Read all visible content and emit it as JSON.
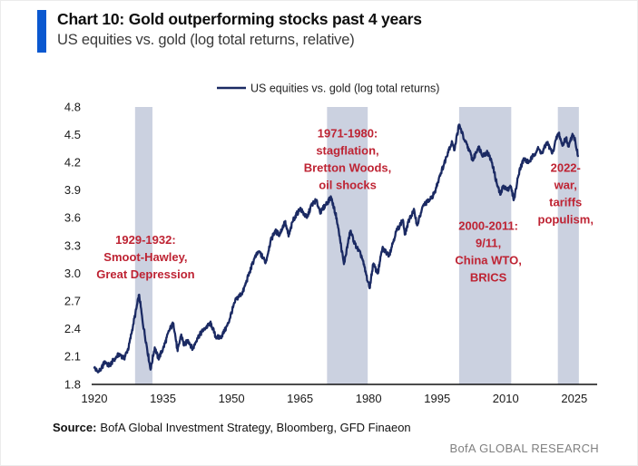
{
  "header": {
    "title": "Chart 10: Gold outperforming stocks past 4 years",
    "subtitle": "US equities vs. gold (log total returns, relative)"
  },
  "legend": {
    "label": "US equities vs. gold (log total returns)"
  },
  "colors": {
    "accent": "#0a58d0",
    "line": "#1b2a63",
    "band": "#cbd1e0",
    "annotation": "#be2333",
    "axis": "#111111",
    "tick_label": "#1a1a1a",
    "brand": "#808080"
  },
  "chart_data": {
    "type": "line",
    "title": "Chart 10: Gold outperforming stocks past 4 years",
    "subtitle": "US equities vs. gold (log total returns, relative)",
    "xlabel": "",
    "ylabel": "",
    "xlim": [
      1920,
      2030
    ],
    "ylim": [
      1.8,
      4.8
    ],
    "xticks": [
      1920,
      1935,
      1950,
      1965,
      1980,
      1995,
      2010,
      2025
    ],
    "yticks": [
      1.8,
      2.1,
      2.4,
      2.7,
      3.0,
      3.3,
      3.6,
      3.9,
      4.2,
      4.5,
      4.8
    ],
    "grid": false,
    "legend_position": "top-center",
    "series": [
      {
        "name": "US equities vs. gold (log total returns)",
        "points": [
          [
            1920,
            1.98
          ],
          [
            1920.8,
            1.93
          ],
          [
            1921.5,
            1.97
          ],
          [
            1922.3,
            2.05
          ],
          [
            1923.2,
            2.0
          ],
          [
            1924.5,
            2.08
          ],
          [
            1925.5,
            2.13
          ],
          [
            1926.5,
            2.08
          ],
          [
            1927.5,
            2.2
          ],
          [
            1928.5,
            2.45
          ],
          [
            1929.8,
            2.77
          ],
          [
            1930.5,
            2.5
          ],
          [
            1931.5,
            2.2
          ],
          [
            1932.3,
            1.96
          ],
          [
            1933.2,
            2.2
          ],
          [
            1934,
            2.08
          ],
          [
            1935,
            2.18
          ],
          [
            1936.5,
            2.4
          ],
          [
            1937.3,
            2.46
          ],
          [
            1938.2,
            2.16
          ],
          [
            1939,
            2.34
          ],
          [
            1939.6,
            2.22
          ],
          [
            1940.5,
            2.28
          ],
          [
            1941.5,
            2.18
          ],
          [
            1942.5,
            2.3
          ],
          [
            1944,
            2.4
          ],
          [
            1945.5,
            2.46
          ],
          [
            1946.5,
            2.32
          ],
          [
            1947.5,
            2.3
          ],
          [
            1948.5,
            2.38
          ],
          [
            1949.3,
            2.46
          ],
          [
            1950,
            2.58
          ],
          [
            1951,
            2.72
          ],
          [
            1952.5,
            2.8
          ],
          [
            1954,
            3.02
          ],
          [
            1955,
            3.16
          ],
          [
            1956,
            3.24
          ],
          [
            1957.5,
            3.12
          ],
          [
            1958.5,
            3.34
          ],
          [
            1959.5,
            3.46
          ],
          [
            1960.5,
            3.42
          ],
          [
            1961.7,
            3.56
          ],
          [
            1962.5,
            3.4
          ],
          [
            1963.5,
            3.58
          ],
          [
            1965,
            3.7
          ],
          [
            1966.5,
            3.6
          ],
          [
            1967.5,
            3.74
          ],
          [
            1968.5,
            3.79
          ],
          [
            1969.5,
            3.66
          ],
          [
            1970.5,
            3.74
          ],
          [
            1971.8,
            3.82
          ],
          [
            1973,
            3.6
          ],
          [
            1974.6,
            3.1
          ],
          [
            1976,
            3.46
          ],
          [
            1977,
            3.32
          ],
          [
            1978.5,
            3.18
          ],
          [
            1979.5,
            2.98
          ],
          [
            1980.2,
            2.84
          ],
          [
            1981,
            3.1
          ],
          [
            1982,
            3.0
          ],
          [
            1983,
            3.27
          ],
          [
            1984.5,
            3.2
          ],
          [
            1986,
            3.45
          ],
          [
            1987.5,
            3.58
          ],
          [
            1987.9,
            3.42
          ],
          [
            1989,
            3.6
          ],
          [
            1990,
            3.68
          ],
          [
            1990.6,
            3.52
          ],
          [
            1992,
            3.74
          ],
          [
            1993.5,
            3.8
          ],
          [
            1994.5,
            3.88
          ],
          [
            1995.5,
            4.05
          ],
          [
            1996.5,
            4.18
          ],
          [
            1997.5,
            4.34
          ],
          [
            1998.3,
            4.42
          ],
          [
            1998.7,
            4.33
          ],
          [
            1999.8,
            4.61
          ],
          [
            2001,
            4.44
          ],
          [
            2002,
            4.33
          ],
          [
            2002.8,
            4.22
          ],
          [
            2004,
            4.37
          ],
          [
            2005,
            4.28
          ],
          [
            2006,
            4.31
          ],
          [
            2007,
            4.2
          ],
          [
            2008,
            3.98
          ],
          [
            2008.8,
            3.85
          ],
          [
            2009.5,
            3.95
          ],
          [
            2010.3,
            3.9
          ],
          [
            2011,
            3.95
          ],
          [
            2011.8,
            3.8
          ],
          [
            2013,
            4.12
          ],
          [
            2014,
            4.24
          ],
          [
            2015,
            4.2
          ],
          [
            2016,
            4.27
          ],
          [
            2017,
            4.35
          ],
          [
            2018,
            4.3
          ],
          [
            2019,
            4.42
          ],
          [
            2020.2,
            4.3
          ],
          [
            2021,
            4.45
          ],
          [
            2021.6,
            4.52
          ],
          [
            2022.4,
            4.38
          ],
          [
            2023.2,
            4.47
          ],
          [
            2023.8,
            4.37
          ],
          [
            2024.6,
            4.51
          ],
          [
            2025.2,
            4.44
          ],
          [
            2025.8,
            4.27
          ]
        ]
      }
    ],
    "bands": [
      {
        "label": "1929-1932",
        "from": 1928.9,
        "to": 1932.7
      },
      {
        "label": "1971-1980",
        "from": 1970.9,
        "to": 1979.8
      },
      {
        "label": "2000-2011",
        "from": 1999.8,
        "to": 2011.2
      },
      {
        "label": "2022-",
        "from": 2021.4,
        "to": 2026.0
      }
    ],
    "annotations": [
      {
        "lines": [
          "1929-1932:",
          "Smoot-Hawley,",
          "Great Depression"
        ],
        "year": 1931.2,
        "value_top": 3.32
      },
      {
        "lines": [
          "1971-1980:",
          "stagflation,",
          "Bretton Woods,",
          "oil shocks"
        ],
        "year": 1975.4,
        "value_top": 4.47
      },
      {
        "lines": [
          "2000-2011:",
          "9/11,",
          "China WTO,",
          "BRICS"
        ],
        "year": 2006.2,
        "value_top": 3.47
      },
      {
        "lines": [
          "2022-",
          "war,",
          "tariffs",
          "populism,"
        ],
        "year": 2023.1,
        "value_top": 4.1
      }
    ]
  },
  "footer": {
    "source_label": "Source:",
    "source_text": "BofA Global Investment Strategy, Bloomberg, GFD Finaeon",
    "brand": "BofA GLOBAL RESEARCH"
  }
}
